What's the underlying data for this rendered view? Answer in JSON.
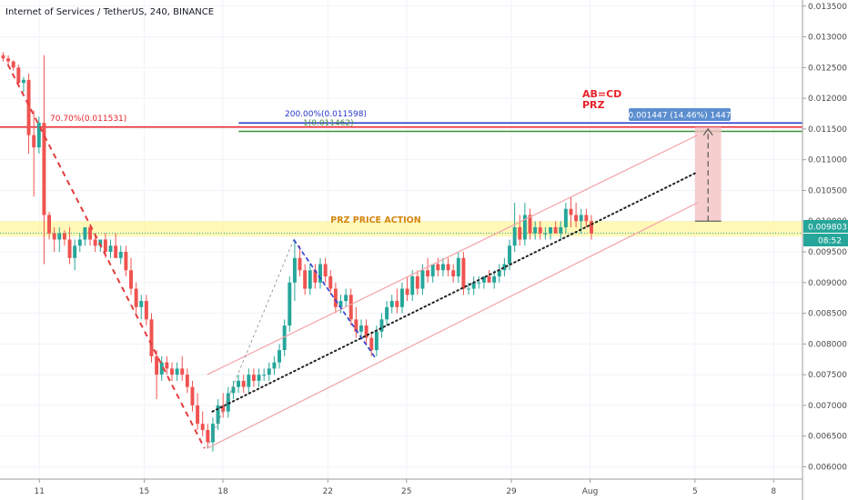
{
  "header": {
    "title": "Internet of Services / TetherUS, 240, BINANCE"
  },
  "chart_data": {
    "type": "candlestick",
    "title": "Internet of Services / TetherUS, 240, BINANCE",
    "ylim": [
      0.0058,
      0.0136
    ],
    "xlim": [
      9.5,
      40.1
    ],
    "y_ticks": [
      "0.013500",
      "0.013000",
      "0.012500",
      "0.012000",
      "0.011500",
      "0.011000",
      "0.010500",
      "0.010000",
      "0.009500",
      "0.009000",
      "0.008500",
      "0.008000",
      "0.007500",
      "0.007000",
      "0.006500",
      "0.006000"
    ],
    "x_ticks": [
      {
        "label": "11",
        "day": 11
      },
      {
        "label": "15",
        "day": 15
      },
      {
        "label": "18",
        "day": 18
      },
      {
        "label": "22",
        "day": 22
      },
      {
        "label": "25",
        "day": 25
      },
      {
        "label": "29",
        "day": 29
      },
      {
        "label": "Aug",
        "day": 32
      },
      {
        "label": "5",
        "day": 36
      },
      {
        "label": "8",
        "day": 39
      }
    ],
    "candles": [
      [
        0.0127,
        0.01275,
        0.0126,
        0.01265
      ],
      [
        0.01265,
        0.0127,
        0.01255,
        0.0126
      ],
      [
        0.0126,
        0.01262,
        0.01245,
        0.0125
      ],
      [
        0.0125,
        0.01255,
        0.0122,
        0.01225
      ],
      [
        0.01225,
        0.01235,
        0.0121,
        0.0123
      ],
      [
        0.0123,
        0.0124,
        0.0111,
        0.0114
      ],
      [
        0.0114,
        0.0118,
        0.0104,
        0.0112
      ],
      [
        0.0112,
        0.0117,
        0.0111,
        0.0116
      ],
      [
        0.0116,
        0.0127,
        0.0093,
        0.0101
      ],
      [
        0.0101,
        0.01015,
        0.0097,
        0.0098
      ],
      [
        0.0098,
        0.0099,
        0.0095,
        0.0097
      ],
      [
        0.0097,
        0.0099,
        0.0095,
        0.0098
      ],
      [
        0.0098,
        0.00985,
        0.0096,
        0.0097
      ],
      [
        0.0097,
        0.0099,
        0.0093,
        0.0094
      ],
      [
        0.0094,
        0.0097,
        0.0092,
        0.0096
      ],
      [
        0.0096,
        0.0098,
        0.0095,
        0.0097
      ],
      [
        0.0097,
        0.0099,
        0.0096,
        0.0099
      ],
      [
        0.0099,
        0.00995,
        0.0096,
        0.0097
      ],
      [
        0.0097,
        0.0098,
        0.0095,
        0.0096
      ],
      [
        0.0096,
        0.0097,
        0.0095,
        0.0097
      ],
      [
        0.0097,
        0.0098,
        0.0094,
        0.0095
      ],
      [
        0.0095,
        0.0097,
        0.0094,
        0.0096
      ],
      [
        0.0096,
        0.0098,
        0.0094,
        0.0094
      ],
      [
        0.0094,
        0.0096,
        0.0093,
        0.0095
      ],
      [
        0.0095,
        0.0096,
        0.0091,
        0.0092
      ],
      [
        0.0092,
        0.0094,
        0.0088,
        0.0089
      ],
      [
        0.0089,
        0.009,
        0.0085,
        0.0086
      ],
      [
        0.0086,
        0.0088,
        0.0084,
        0.0087
      ],
      [
        0.0087,
        0.0088,
        0.0083,
        0.0084
      ],
      [
        0.0084,
        0.0085,
        0.0077,
        0.0078
      ],
      [
        0.0078,
        0.0079,
        0.0071,
        0.0075
      ],
      [
        0.0075,
        0.0078,
        0.0074,
        0.0077
      ],
      [
        0.0077,
        0.0078,
        0.0075,
        0.0076
      ],
      [
        0.0076,
        0.0077,
        0.0074,
        0.0075
      ],
      [
        0.0075,
        0.0077,
        0.0074,
        0.0076
      ],
      [
        0.0076,
        0.0078,
        0.0074,
        0.0075
      ],
      [
        0.0075,
        0.0076,
        0.0072,
        0.0073
      ],
      [
        0.0073,
        0.0074,
        0.0069,
        0.007
      ],
      [
        0.007,
        0.0072,
        0.0066,
        0.0067
      ],
      [
        0.0067,
        0.0069,
        0.0065,
        0.0066
      ],
      [
        0.0066,
        0.0067,
        0.0063,
        0.0064
      ],
      [
        0.0064,
        0.0068,
        0.00625,
        0.0067
      ],
      [
        0.0067,
        0.0071,
        0.0066,
        0.007
      ],
      [
        0.007,
        0.0072,
        0.0068,
        0.0069
      ],
      [
        0.0069,
        0.0073,
        0.0068,
        0.0072
      ],
      [
        0.0072,
        0.0074,
        0.0071,
        0.0073
      ],
      [
        0.0073,
        0.0075,
        0.0072,
        0.0074
      ],
      [
        0.0074,
        0.0075,
        0.0072,
        0.0073
      ],
      [
        0.0073,
        0.0076,
        0.0072,
        0.0075
      ],
      [
        0.0075,
        0.0076,
        0.0073,
        0.0074
      ],
      [
        0.0074,
        0.0076,
        0.0073,
        0.0075
      ],
      [
        0.0075,
        0.0076,
        0.0074,
        0.0075
      ],
      [
        0.0075,
        0.0077,
        0.0074,
        0.0076
      ],
      [
        0.0076,
        0.0078,
        0.0075,
        0.0077
      ],
      [
        0.0077,
        0.008,
        0.0076,
        0.0079
      ],
      [
        0.0079,
        0.0084,
        0.0078,
        0.0083
      ],
      [
        0.0083,
        0.0091,
        0.0082,
        0.009
      ],
      [
        0.009,
        0.0097,
        0.0087,
        0.0094
      ],
      [
        0.0094,
        0.0096,
        0.0091,
        0.0092
      ],
      [
        0.0092,
        0.0093,
        0.0088,
        0.0089
      ],
      [
        0.0089,
        0.0093,
        0.0088,
        0.0092
      ],
      [
        0.0092,
        0.0093,
        0.0089,
        0.009
      ],
      [
        0.009,
        0.0094,
        0.0089,
        0.0093
      ],
      [
        0.0093,
        0.0094,
        0.009,
        0.0091
      ],
      [
        0.0091,
        0.0092,
        0.0088,
        0.0089
      ],
      [
        0.0089,
        0.009,
        0.0085,
        0.0086
      ],
      [
        0.0086,
        0.0088,
        0.0085,
        0.0087
      ],
      [
        0.0087,
        0.0089,
        0.0086,
        0.0088
      ],
      [
        0.0088,
        0.0089,
        0.0083,
        0.0084
      ],
      [
        0.0084,
        0.0086,
        0.0081,
        0.0082
      ],
      [
        0.0082,
        0.0084,
        0.0081,
        0.0083
      ],
      [
        0.0083,
        0.0084,
        0.008,
        0.0081
      ],
      [
        0.0081,
        0.0082,
        0.0078,
        0.0079
      ],
      [
        0.0079,
        0.0083,
        0.0078,
        0.0082
      ],
      [
        0.0082,
        0.0085,
        0.0081,
        0.0084
      ],
      [
        0.0084,
        0.0087,
        0.0083,
        0.0086
      ],
      [
        0.0086,
        0.0088,
        0.0085,
        0.0087
      ],
      [
        0.0087,
        0.0089,
        0.0085,
        0.0086
      ],
      [
        0.0086,
        0.009,
        0.0085,
        0.0089
      ],
      [
        0.0089,
        0.0091,
        0.0087,
        0.0088
      ],
      [
        0.0088,
        0.0092,
        0.0087,
        0.0091
      ],
      [
        0.0091,
        0.0092,
        0.0088,
        0.0089
      ],
      [
        0.0089,
        0.0093,
        0.0088,
        0.0092
      ],
      [
        0.0092,
        0.0094,
        0.009,
        0.0091
      ],
      [
        0.0091,
        0.0093,
        0.009,
        0.0093
      ],
      [
        0.0093,
        0.0094,
        0.0091,
        0.0092
      ],
      [
        0.0092,
        0.0094,
        0.0091,
        0.0093
      ],
      [
        0.0093,
        0.0094,
        0.0091,
        0.0092
      ],
      [
        0.0092,
        0.0093,
        0.009,
        0.0091
      ],
      [
        0.0091,
        0.0095,
        0.009,
        0.0094
      ],
      [
        0.0094,
        0.0095,
        0.0088,
        0.0089
      ],
      [
        0.0089,
        0.009,
        0.0088,
        0.0089
      ],
      [
        0.0089,
        0.0091,
        0.0088,
        0.009
      ],
      [
        0.009,
        0.0091,
        0.0089,
        0.009
      ],
      [
        0.009,
        0.0091,
        0.0089,
        0.0091
      ],
      [
        0.0091,
        0.0092,
        0.009,
        0.009
      ],
      [
        0.009,
        0.0092,
        0.0089,
        0.0091
      ],
      [
        0.0091,
        0.0093,
        0.009,
        0.0092
      ],
      [
        0.0092,
        0.0094,
        0.0091,
        0.0093
      ],
      [
        0.0093,
        0.0097,
        0.0092,
        0.0096
      ],
      [
        0.0096,
        0.0103,
        0.0095,
        0.0099
      ],
      [
        0.0099,
        0.0101,
        0.0096,
        0.0097
      ],
      [
        0.0097,
        0.0103,
        0.0096,
        0.0101
      ],
      [
        0.0101,
        0.0102,
        0.0097,
        0.0098
      ],
      [
        0.0098,
        0.01,
        0.0097,
        0.0099
      ],
      [
        0.0099,
        0.01,
        0.0097,
        0.0098
      ],
      [
        0.0098,
        0.0099,
        0.0097,
        0.0098
      ],
      [
        0.0098,
        0.0099,
        0.0097,
        0.0099
      ],
      [
        0.0099,
        0.01,
        0.0098,
        0.0098
      ],
      [
        0.0098,
        0.01,
        0.0097,
        0.0099
      ],
      [
        0.0099,
        0.0103,
        0.0098,
        0.0102
      ],
      [
        0.0102,
        0.0104,
        0.0099,
        0.0101
      ],
      [
        0.0101,
        0.0103,
        0.0099,
        0.01
      ],
      [
        0.01,
        0.0102,
        0.0098,
        0.0101
      ],
      [
        0.0101,
        0.0102,
        0.0099,
        0.01
      ],
      [
        0.01,
        0.0101,
        0.0097,
        0.0098
      ]
    ],
    "lines": {
      "resistance_level": 0.011531,
      "prz_upper_blue": 0.011598,
      "prz_lower_green": 0.011462,
      "prz_zone": [
        0.00975,
        0.01
      ]
    },
    "annotations": {
      "fib_label": "70.70%(0.011531)",
      "blue_label": "200.00%(0.011598)",
      "green_label": "1(0.011462)",
      "abcd_label": "AB=CD",
      "prz_label": "PRZ",
      "zone_label": "PRZ PRICE ACTION",
      "measure_label": "0.001447 (14.46%) 1447"
    },
    "last_price": "0.009803",
    "countdown": "08:52",
    "colors": {
      "up": "#26a69a",
      "down": "#ef5350",
      "resistance": "#e8222a",
      "blue": "#2636c9",
      "green": "#3d8f3d",
      "zone": "#fff59d",
      "channel": "#f4a8ae",
      "price_tag": "#26a69a",
      "measure_tag": "#5b8ed0"
    }
  }
}
